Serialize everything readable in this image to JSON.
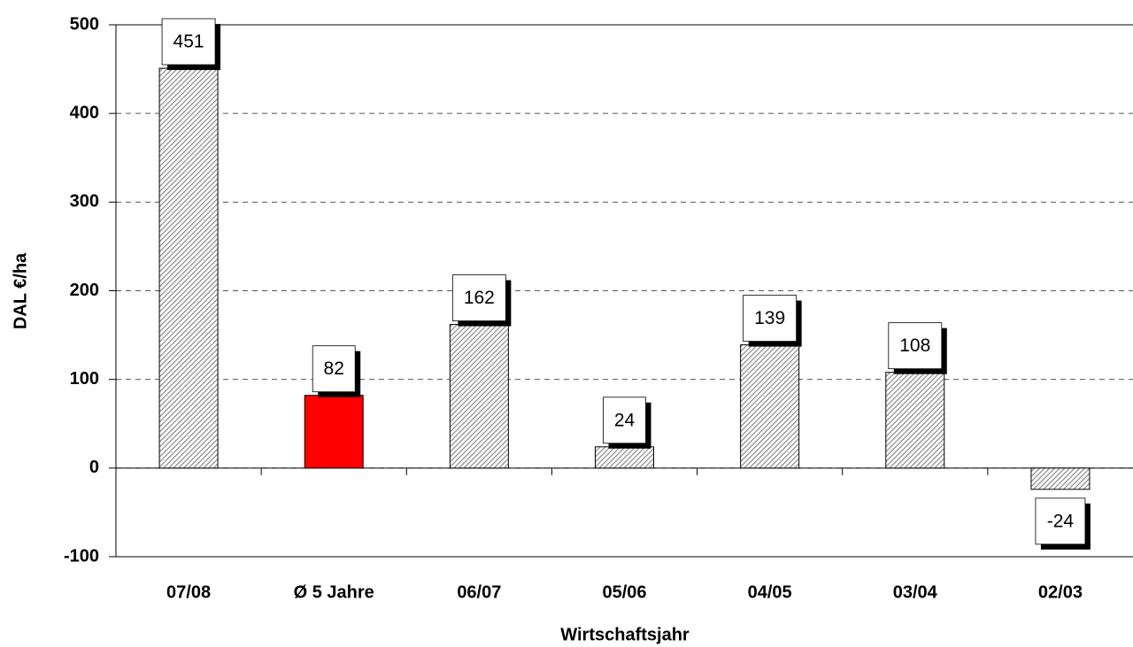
{
  "chart_data": {
    "type": "bar",
    "x_label": "Wirtschaftsjahr",
    "y_label": "DAL €/ha",
    "categories": [
      "07/08",
      "Ø 5 Jahre",
      "06/07",
      "05/06",
      "04/05",
      "03/04",
      "02/03"
    ],
    "values": [
      451,
      82,
      162,
      24,
      139,
      108,
      -24
    ],
    "colors": [
      "#808080",
      "#ff0000",
      "#808080",
      "#808080",
      "#808080",
      "#808080",
      "#808080"
    ],
    "hatched": [
      true,
      false,
      true,
      true,
      true,
      true,
      true
    ],
    "ylim": [
      -100,
      500
    ],
    "yticks": [
      -100,
      0,
      100,
      200,
      300,
      400,
      500
    ],
    "grid": true
  }
}
